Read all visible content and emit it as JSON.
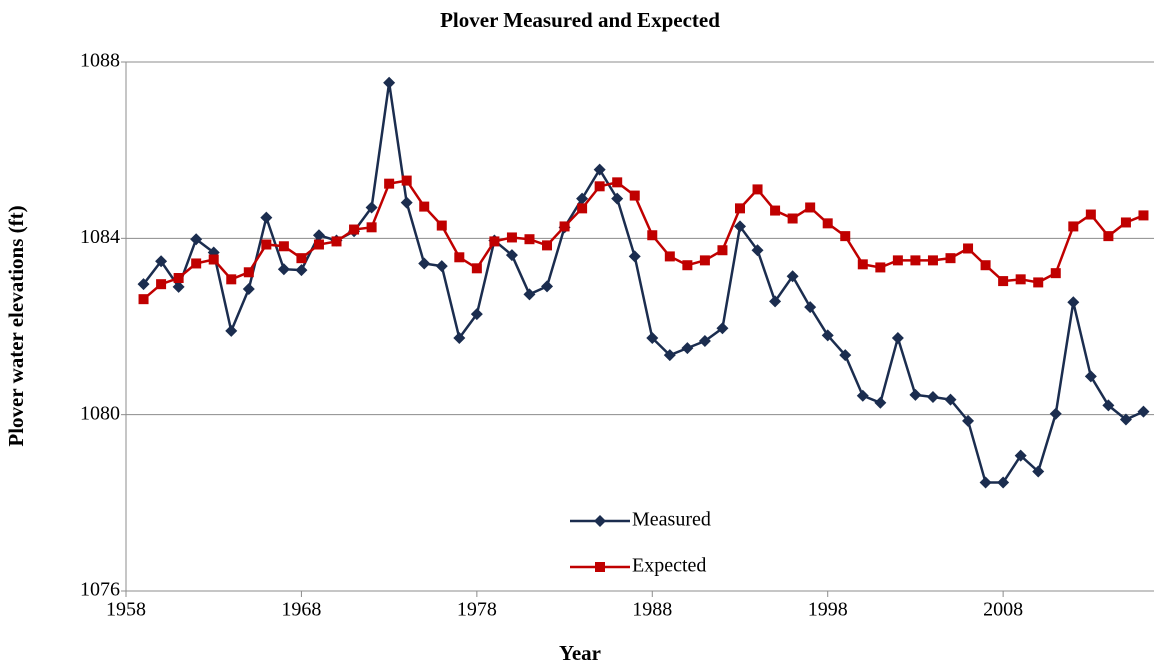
{
  "chart_data": {
    "type": "line",
    "title": "Plover Measured and Expected",
    "xlabel": "Year",
    "ylabel": "Plover water elevations (ft)",
    "x": [
      1959,
      1960,
      1961,
      1962,
      1963,
      1964,
      1965,
      1966,
      1967,
      1968,
      1969,
      1970,
      1971,
      1972,
      1973,
      1974,
      1975,
      1976,
      1977,
      1978,
      1979,
      1980,
      1981,
      1982,
      1983,
      1984,
      1985,
      1986,
      1987,
      1988,
      1989,
      1990,
      1991,
      1992,
      1993,
      1994,
      1995,
      1996,
      1997,
      1998,
      1999,
      2000,
      2001,
      2002,
      2003,
      2004,
      2005,
      2006,
      2007,
      2008,
      2009,
      2010,
      2011,
      2012,
      2013,
      2014,
      2015,
      2016
    ],
    "series": [
      {
        "name": "Measured",
        "color": "#1b2d4f",
        "marker": "diamond",
        "values": [
          1082.96,
          1083.48,
          1082.9,
          1083.98,
          1083.68,
          1081.9,
          1082.85,
          1084.47,
          1083.3,
          1083.28,
          1084.07,
          1083.95,
          1084.16,
          1084.7,
          1087.53,
          1084.81,
          1083.43,
          1083.37,
          1081.74,
          1082.28,
          1083.95,
          1083.62,
          1082.73,
          1082.91,
          1084.25,
          1084.9,
          1085.56,
          1084.9,
          1083.59,
          1081.74,
          1081.35,
          1081.51,
          1081.67,
          1081.96,
          1084.27,
          1083.73,
          1082.57,
          1083.14,
          1082.44,
          1081.8,
          1081.35,
          1080.43,
          1080.27,
          1081.74,
          1080.45,
          1080.4,
          1080.34,
          1079.86,
          1078.46,
          1078.46,
          1079.07,
          1078.71,
          1080.02,
          1082.55,
          1080.87,
          1080.21,
          1079.89,
          1080.07
        ]
      },
      {
        "name": "Expected",
        "color": "#c00000",
        "marker": "square",
        "values": [
          1082.62,
          1082.96,
          1083.1,
          1083.43,
          1083.52,
          1083.07,
          1083.23,
          1083.86,
          1083.82,
          1083.55,
          1083.86,
          1083.93,
          1084.2,
          1084.25,
          1085.24,
          1085.31,
          1084.72,
          1084.29,
          1083.57,
          1083.32,
          1083.93,
          1084.02,
          1083.98,
          1083.84,
          1084.27,
          1084.68,
          1085.18,
          1085.27,
          1084.97,
          1084.07,
          1083.59,
          1083.39,
          1083.5,
          1083.73,
          1084.68,
          1085.11,
          1084.63,
          1084.45,
          1084.7,
          1084.34,
          1084.05,
          1083.41,
          1083.34,
          1083.5,
          1083.5,
          1083.5,
          1083.55,
          1083.77,
          1083.39,
          1083.03,
          1083.07,
          1083.0,
          1083.21,
          1084.27,
          1084.54,
          1084.05,
          1084.36,
          1084.52
        ]
      }
    ],
    "xlim": [
      1958,
      2016.6
    ],
    "xticks": [
      1958,
      1968,
      1978,
      1988,
      1998,
      2008
    ],
    "ylim": [
      1076,
      1088
    ],
    "yticks": [
      1076,
      1080,
      1084,
      1088
    ],
    "grid": true,
    "legend": "lower center"
  }
}
